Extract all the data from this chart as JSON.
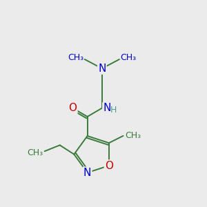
{
  "bg_color": "#ebebeb",
  "bond_color": "#3a7a3a",
  "N_color": "#0000cc",
  "O_color": "#cc0000",
  "H_color": "#4a9a9a",
  "bond_lw": 1.4,
  "fig_size": [
    3.0,
    3.0
  ],
  "dpi": 100,
  "xlim": [
    0,
    10
  ],
  "ylim": [
    0,
    10
  ]
}
